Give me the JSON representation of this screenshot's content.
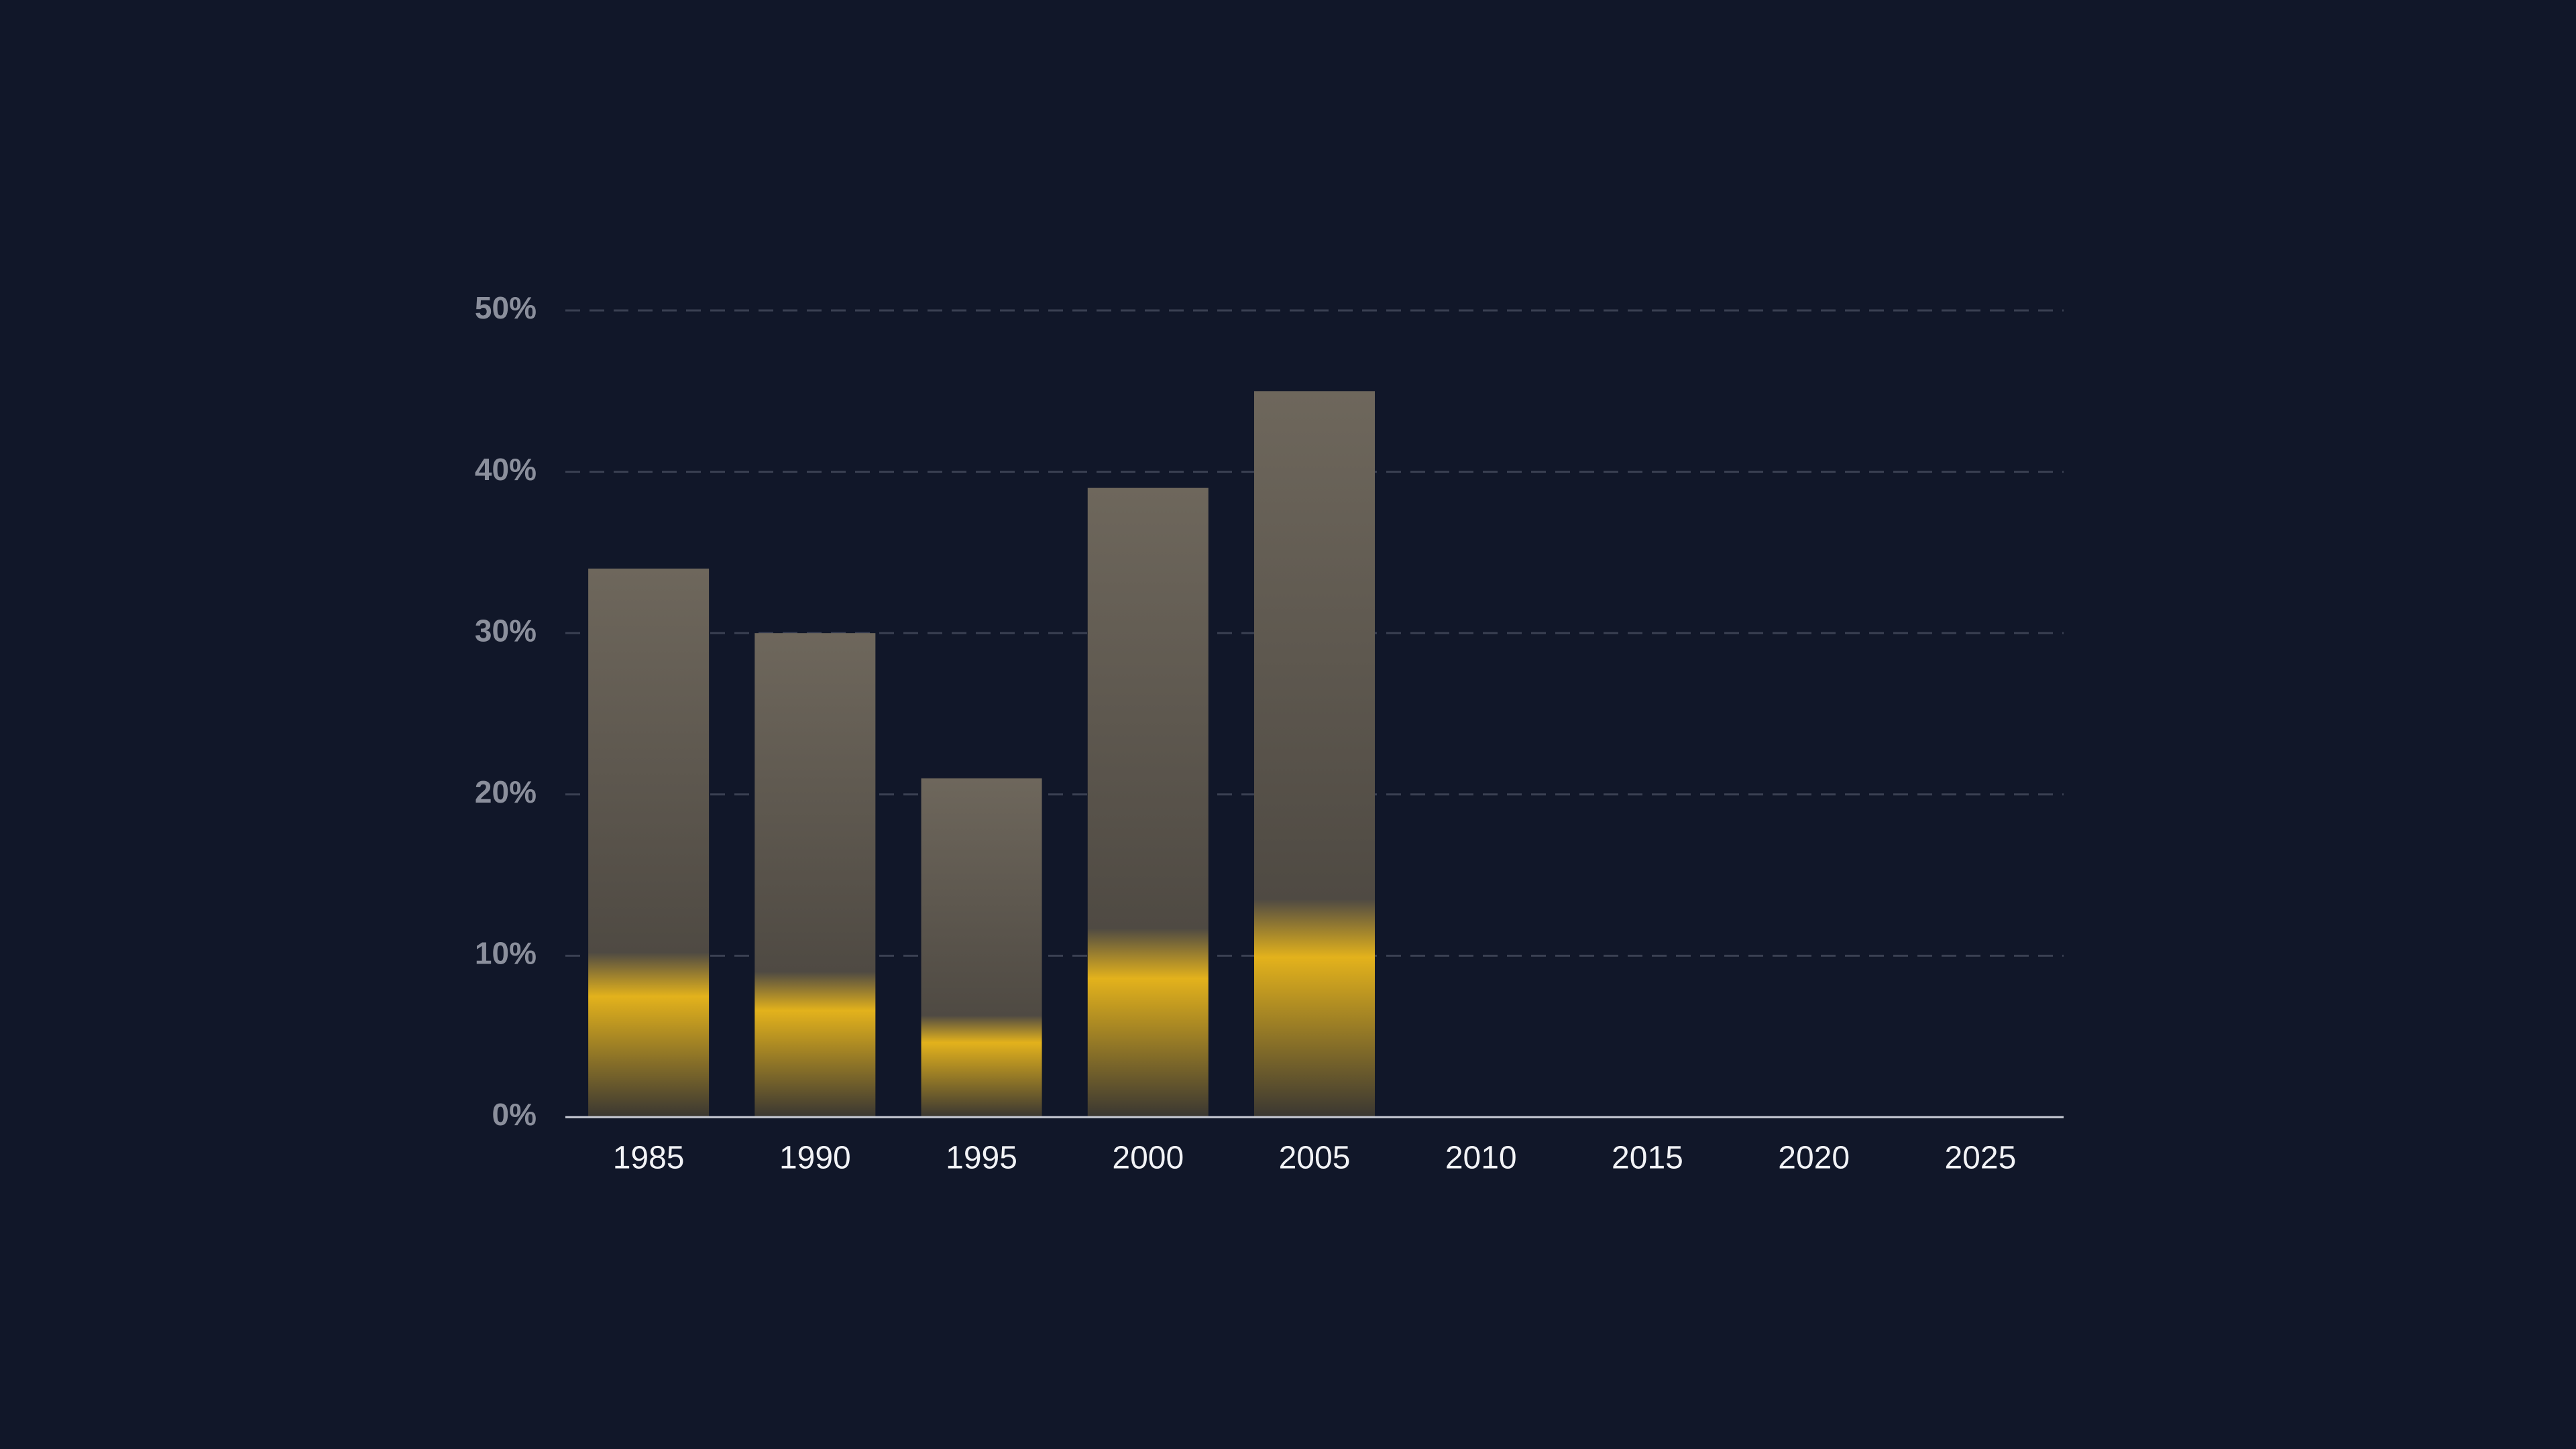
{
  "chart_data": {
    "type": "bar",
    "categories": [
      "1985",
      "1990",
      "1995",
      "2000",
      "2005",
      "2010",
      "2015",
      "2020",
      "2025"
    ],
    "values": [
      34,
      30,
      21,
      39,
      45,
      null,
      null,
      null,
      null
    ],
    "color": "#6e675c",
    "ylim": [
      0,
      50
    ],
    "yticks": [
      {
        "value": 0,
        "label": "0%"
      },
      {
        "value": 10,
        "label": "10%"
      },
      {
        "value": 20,
        "label": "20%"
      },
      {
        "value": 30,
        "label": "30%"
      },
      {
        "value": 40,
        "label": "40%"
      },
      {
        "value": 50,
        "label": "50%"
      }
    ],
    "grid": true
  }
}
